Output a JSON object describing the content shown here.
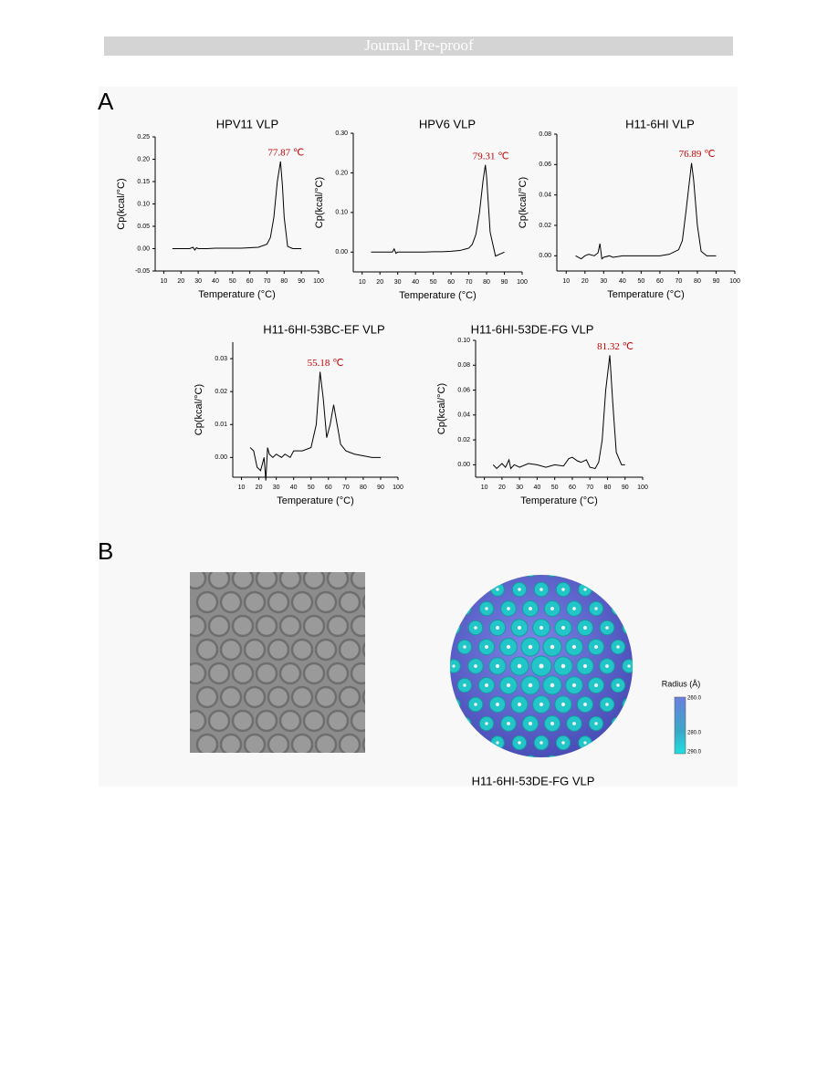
{
  "header": {
    "title": "Journal Pre-proof"
  },
  "panels": {
    "a": "A",
    "b": "B"
  },
  "chart_data": [
    {
      "type": "line",
      "title": "HPV11 VLP",
      "xlabel": "Temperature (°C)",
      "ylabel": "Cp(kcal/°C)",
      "color": "#000000",
      "annotation": "77.87 ℃",
      "annotation_color": "#c00000",
      "x": [
        15,
        20,
        25,
        27,
        28,
        29,
        30,
        35,
        40,
        45,
        50,
        55,
        60,
        65,
        70,
        72,
        74,
        76,
        77.87,
        79,
        80,
        82,
        85,
        90
      ],
      "values": [
        0,
        0,
        0,
        0.003,
        -0.003,
        0.002,
        0,
        0,
        0.001,
        0.001,
        0.001,
        0.001,
        0.002,
        0.003,
        0.01,
        0.025,
        0.07,
        0.15,
        0.195,
        0.14,
        0.07,
        0.005,
        0,
        0
      ],
      "xlim": [
        5,
        100
      ],
      "xticks": [
        10,
        20,
        30,
        40,
        50,
        60,
        70,
        80,
        90,
        100
      ],
      "ylim": [
        -0.05,
        0.25
      ],
      "yticks": [
        -0.05,
        {
          "value": 0,
          "label": "0.00"
        },
        0.05,
        {
          "value": 0.1,
          "label": "0.10"
        },
        0.15,
        {
          "value": 0.2,
          "label": "0.20"
        },
        0.25
      ]
    },
    {
      "type": "line",
      "title": "HPV6 VLP",
      "xlabel": "Temperature (°C)",
      "ylabel": "Cp(kcal/°C)",
      "color": "#000000",
      "annotation": "79.31 ℃",
      "annotation_color": "#c00000",
      "x": [
        15,
        20,
        25,
        27,
        28,
        29,
        30,
        35,
        40,
        45,
        50,
        55,
        60,
        65,
        70,
        72,
        74,
        76,
        78,
        79.31,
        80,
        82,
        85,
        90
      ],
      "values": [
        0,
        0,
        0,
        0,
        0.008,
        -0.003,
        0,
        0,
        0,
        0,
        0.001,
        0.001,
        0.002,
        0.004,
        0.01,
        0.02,
        0.045,
        0.1,
        0.18,
        0.22,
        0.19,
        0.05,
        -0.01,
        0
      ],
      "xlim": [
        5,
        100
      ],
      "xticks": [
        10,
        20,
        30,
        40,
        50,
        60,
        70,
        80,
        90,
        100
      ],
      "ylim": [
        -0.05,
        0.3
      ],
      "yticks": [
        {
          "value": 0,
          "label": "0.00"
        },
        {
          "value": 0.1,
          "label": "0.10"
        },
        {
          "value": 0.2,
          "label": "0.20"
        },
        {
          "value": 0.3,
          "label": "0.30"
        }
      ]
    },
    {
      "type": "line",
      "title": "H11-6HI VLP",
      "xlabel": "Temperature (°C)",
      "ylabel": "Cp(kcal/°C)",
      "color": "#000000",
      "annotation": "76.89 ℃",
      "annotation_color": "#c00000",
      "x": [
        15,
        18,
        20,
        22,
        25,
        27,
        28,
        29,
        30,
        33,
        35,
        40,
        45,
        50,
        55,
        60,
        65,
        70,
        72,
        74,
        76.89,
        78,
        80,
        82,
        85,
        90
      ],
      "values": [
        0,
        -0.002,
        0,
        0.001,
        0,
        0.002,
        0.008,
        -0.002,
        -0.001,
        0,
        -0.001,
        0,
        0,
        0,
        0,
        0,
        0.001,
        0.004,
        0.01,
        0.03,
        0.061,
        0.05,
        0.02,
        0.003,
        0,
        0
      ],
      "xlim": [
        5,
        100
      ],
      "xticks": [
        10,
        20,
        30,
        40,
        50,
        60,
        70,
        80,
        90,
        100
      ],
      "ylim": [
        -0.01,
        0.08
      ],
      "yticks": [
        {
          "value": 0,
          "label": "0.00"
        },
        0.02,
        0.04,
        0.06,
        0.08
      ]
    },
    {
      "type": "line",
      "title": "H11-6HI-53BC-EF VLP",
      "xlabel": "Temperature (°C)",
      "ylabel": "Cp(kcal/°C)",
      "color": "#000000",
      "annotation": "55.18 ℃",
      "annotation_color": "#c00000",
      "x": [
        15,
        17,
        19,
        21,
        23,
        24,
        25,
        26,
        28,
        30,
        33,
        35,
        38,
        40,
        45,
        50,
        53,
        55.18,
        57,
        59,
        61,
        63,
        65,
        67,
        70,
        75,
        80,
        85,
        90
      ],
      "values": [
        0.003,
        0.002,
        -0.003,
        -0.004,
        0,
        -0.007,
        0.003,
        0.001,
        0,
        0.001,
        0,
        0.001,
        0,
        0.002,
        0.002,
        0.003,
        0.01,
        0.026,
        0.018,
        0.006,
        0.01,
        0.016,
        0.01,
        0.004,
        0.002,
        0.001,
        0.0005,
        0,
        0
      ],
      "xlim": [
        5,
        100
      ],
      "xticks": [
        10,
        20,
        30,
        40,
        50,
        60,
        70,
        80,
        90,
        100
      ],
      "ylim": [
        -0.006,
        0.035
      ],
      "yticks": [
        {
          "value": 0,
          "label": "0.00"
        },
        0.01,
        0.02,
        0.03
      ]
    },
    {
      "type": "line",
      "title": "H11-6HI-53DE-FG VLP",
      "xlabel": "Temperature (°C)",
      "ylabel": "Cp(kcal/°C)",
      "color": "#000000",
      "annotation": "81.32 ℃",
      "annotation_color": "#c00000",
      "x": [
        15,
        17,
        20,
        22,
        24,
        25,
        27,
        30,
        35,
        40,
        45,
        50,
        55,
        58,
        60,
        63,
        65,
        68,
        70,
        73,
        75,
        77,
        79,
        81.32,
        83,
        85,
        88,
        90
      ],
      "values": [
        0,
        -0.003,
        0.001,
        -0.002,
        0.004,
        -0.003,
        0,
        -0.002,
        0.001,
        0,
        -0.002,
        0,
        -0.001,
        0.005,
        0.006,
        0.003,
        0.002,
        0.004,
        -0.002,
        -0.003,
        0.002,
        0.02,
        0.06,
        0.088,
        0.05,
        0.01,
        0,
        0
      ],
      "xlim": [
        5,
        100
      ],
      "xticks": [
        10,
        20,
        30,
        40,
        50,
        60,
        70,
        80,
        90,
        100
      ],
      "ylim": [
        -0.01,
        0.1
      ],
      "yticks": [
        {
          "value": 0,
          "label": "0.00"
        },
        0.02,
        0.04,
        0.06,
        0.08,
        {
          "value": 0.1,
          "label": "0.10"
        }
      ]
    }
  ],
  "colorbar": {
    "title": "Radius (Å)",
    "labels": [
      "260.0",
      "280.0",
      "290.0"
    ]
  },
  "caption": "H11-6HI-53DE-FG VLP"
}
